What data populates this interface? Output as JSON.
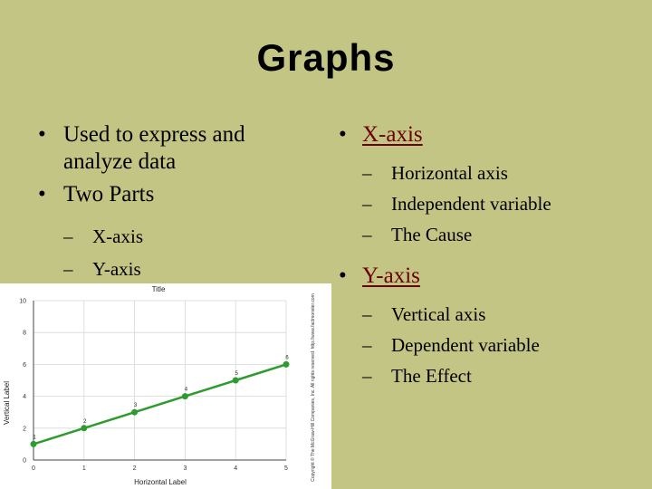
{
  "slide": {
    "title": "Graphs",
    "left": {
      "bullets": [
        "Used to express and analyze data",
        "Two Parts"
      ],
      "subs": [
        "X-axis",
        "Y-axis"
      ]
    },
    "right": {
      "x_axis": {
        "label": "X-axis",
        "items": [
          "Horizontal axis",
          "Independent variable",
          "The Cause"
        ]
      },
      "y_axis": {
        "label": "Y-axis",
        "items": [
          "Vertical axis",
          "Dependent variable",
          "The Effect"
        ]
      }
    },
    "glyphs": {
      "bullet": "•",
      "dash": "–"
    }
  },
  "chart_data": {
    "type": "line",
    "title": "Title",
    "xlabel": "Horizontal Label",
    "ylabel": "Vertical Label",
    "x": [
      0,
      1,
      2,
      3,
      4,
      5
    ],
    "y": [
      1,
      2,
      3,
      4,
      5,
      6
    ],
    "point_labels": [
      "1",
      "2",
      "3",
      "4",
      "5",
      "6"
    ],
    "xticks": [
      0,
      1,
      2,
      3,
      4,
      5
    ],
    "yticks": [
      0,
      2,
      4,
      6,
      8,
      10
    ],
    "xlim": [
      0,
      5
    ],
    "ylim": [
      0,
      10
    ],
    "grid": true,
    "line_color": "#2e9b2e",
    "copyright": "Copyright © The McGraw-Hill Companies, Inc. All rights reserved. http://www.factmonster.com"
  }
}
